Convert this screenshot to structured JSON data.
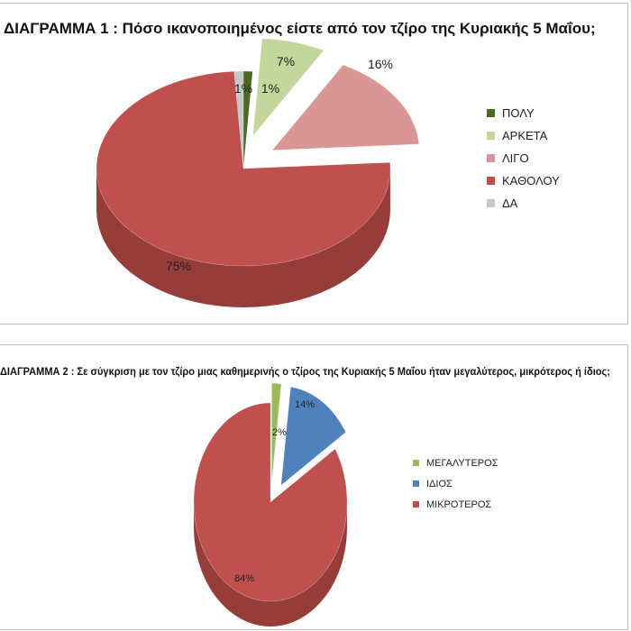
{
  "chart_data": [
    {
      "type": "pie",
      "title": "ΔΙΑΓΡΑΜΜΑ 1 : Πόσο ικανοποιημένος είστε από τον τζίρο της Κυριακής 5 Μαΐου;",
      "categories": [
        "ΠΟΛΥ",
        "ΑΡΚΕΤΑ",
        "ΛΙΓΟ",
        "ΚΑΘΟΛΟΥ",
        "ΔΑ"
      ],
      "values": [
        1,
        7,
        16,
        75,
        1
      ],
      "data_labels": [
        "1%",
        "7%",
        "16%",
        "75%",
        "1%"
      ],
      "colors": [
        "#4a6a1f",
        "#c3d69b",
        "#d99694",
        "#c0504d",
        "#c8c8c8"
      ],
      "sides": [
        "#35501a",
        "#9fb47a",
        "#b87371",
        "#963d3a",
        "#a5a5a5"
      ],
      "legend_position": "right"
    },
    {
      "type": "pie",
      "title": "ΔΙΑΓΡΑΜΜΑ 2 : Σε σύγκριση με τον τζίρο μιας καθημερινής ο τζίρος της Κυριακής 5 Μαΐου ήταν μεγαλύτερος, μικρότερος ή ίδιος;",
      "categories": [
        "ΜΕΓΑΛΥΤΕΡΟΣ",
        "ΙΔΙΟΣ",
        "ΜΙΚΡΟΤΕΡΟΣ"
      ],
      "values": [
        2,
        14,
        84
      ],
      "data_labels": [
        "2%",
        "14%",
        "84%"
      ],
      "colors": [
        "#9bbb59",
        "#4f81bd",
        "#c0504d"
      ],
      "sides": [
        "#76913f",
        "#3a6090",
        "#963d3a"
      ],
      "legend_position": "right"
    }
  ]
}
